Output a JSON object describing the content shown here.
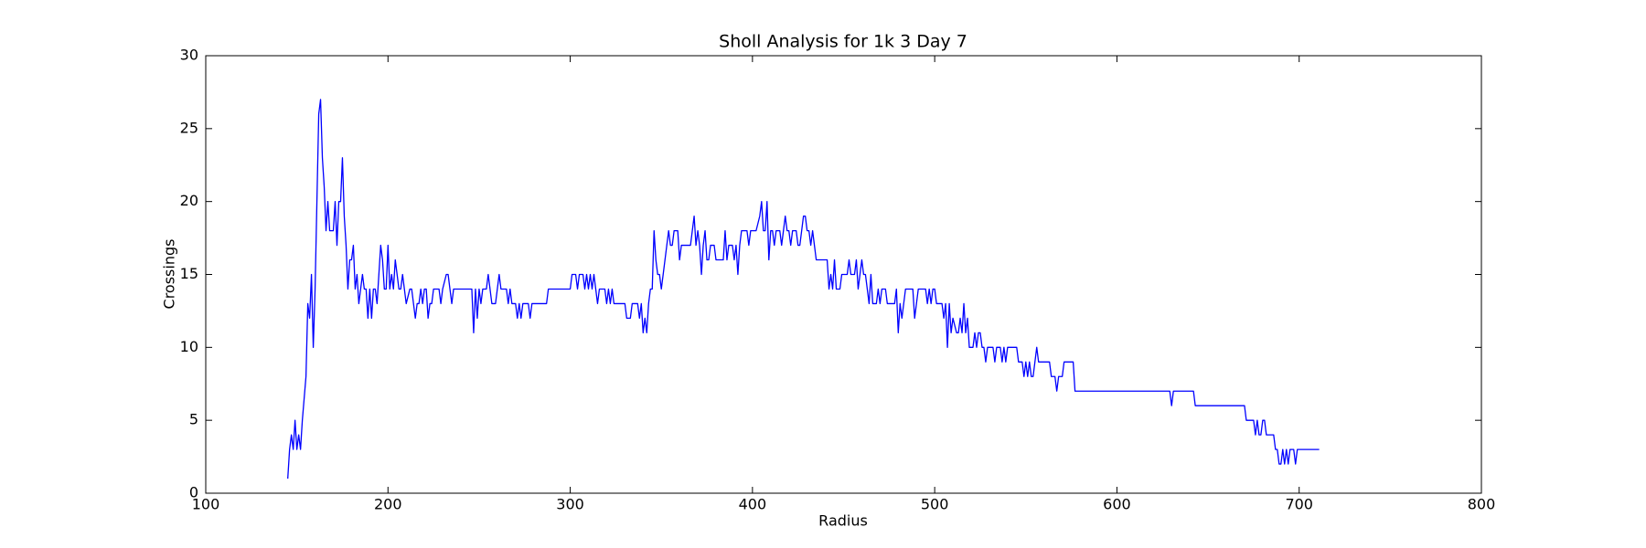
{
  "chart_data": {
    "type": "line",
    "title": "Sholl Analysis for 1k 3 Day 7",
    "x_label": "Radius",
    "y_label": "Crossings",
    "xlim": [
      100,
      800
    ],
    "xticks": [
      100,
      200,
      300,
      400,
      500,
      600,
      700,
      800
    ],
    "ylim": [
      0,
      30
    ],
    "yticks": [
      0,
      5,
      10,
      15,
      20,
      25,
      30
    ],
    "grid": false,
    "series": [
      {
        "color": "#0000ff",
        "x": [
          145,
          146,
          147,
          148,
          149,
          150,
          151,
          152,
          153,
          155,
          156,
          157,
          158,
          159,
          160,
          161,
          162,
          163,
          164,
          165,
          166,
          167,
          168,
          170,
          171,
          172,
          173,
          174,
          175,
          176,
          177,
          178,
          179,
          180,
          181,
          182,
          183,
          184,
          185,
          186,
          187,
          188,
          189,
          190,
          191,
          192,
          193,
          194,
          196,
          197,
          198,
          199,
          200,
          201,
          202,
          203,
          204,
          205,
          206,
          207,
          208,
          209,
          210,
          212,
          213,
          214,
          215,
          216,
          217,
          218,
          219,
          220,
          221,
          222,
          223,
          224,
          225,
          226,
          228,
          229,
          230,
          232,
          233,
          234,
          235,
          236,
          246,
          247,
          248,
          249,
          250,
          251,
          252,
          254,
          255,
          257,
          259,
          260,
          261,
          262,
          265,
          266,
          267,
          268,
          270,
          271,
          272,
          273,
          274,
          277,
          278,
          279,
          282,
          287,
          288,
          297,
          300,
          301,
          303,
          304,
          305,
          307,
          308,
          309,
          310,
          311,
          312,
          313,
          314,
          315,
          316,
          319,
          320,
          321,
          322,
          323,
          324,
          330,
          331,
          333,
          334,
          337,
          338,
          339,
          340,
          341,
          342,
          343,
          344,
          345,
          346,
          347,
          348,
          349,
          350,
          351,
          353,
          354,
          355,
          356,
          357,
          359,
          360,
          361,
          366,
          367,
          368,
          369,
          370,
          371,
          372,
          373,
          374,
          375,
          376,
          377,
          379,
          380,
          384,
          385,
          386,
          387,
          389,
          390,
          391,
          392,
          393,
          394,
          397,
          398,
          399,
          402,
          404,
          405,
          406,
          407,
          408,
          409,
          410,
          411,
          412,
          413,
          415,
          416,
          417,
          418,
          419,
          420,
          421,
          422,
          424,
          425,
          426,
          427,
          428,
          429,
          430,
          431,
          432,
          433,
          434,
          435,
          441,
          442,
          443,
          444,
          445,
          446,
          448,
          449,
          452,
          453,
          454,
          456,
          457,
          458,
          459,
          460,
          461,
          462,
          463,
          464,
          465,
          466,
          468,
          469,
          470,
          471,
          473,
          474,
          478,
          479,
          480,
          481,
          482,
          483,
          484,
          488,
          489,
          490,
          491,
          495,
          496,
          497,
          498,
          499,
          500,
          501,
          504,
          505,
          506,
          507,
          508,
          509,
          510,
          512,
          513,
          514,
          515,
          516,
          517,
          518,
          519,
          521,
          522,
          523,
          524,
          525,
          526,
          527,
          528,
          529,
          532,
          533,
          534,
          536,
          537,
          538,
          539,
          540,
          545,
          546,
          548,
          549,
          550,
          551,
          552,
          553,
          554,
          555,
          556,
          557,
          563,
          564,
          566,
          567,
          568,
          570,
          571,
          576,
          577,
          629,
          630,
          631,
          642,
          643,
          670,
          671,
          675,
          676,
          677,
          678,
          679,
          680,
          681,
          682,
          686,
          687,
          688,
          689,
          690,
          691,
          692,
          693,
          694,
          695,
          697,
          698,
          699,
          711
        ],
        "values": [
          1,
          3,
          4,
          3,
          5,
          3,
          4,
          3,
          5,
          8,
          13,
          12,
          15,
          10,
          14,
          20,
          26,
          27,
          23,
          21,
          18,
          20,
          18,
          18,
          20,
          17,
          20,
          20,
          23,
          19,
          17,
          14,
          16,
          16,
          17,
          14,
          15,
          13,
          14,
          15,
          14,
          14,
          12,
          14,
          12,
          14,
          14,
          13,
          17,
          16,
          14,
          14,
          17,
          14,
          15,
          14,
          16,
          15,
          14,
          14,
          15,
          14,
          13,
          14,
          14,
          13,
          12,
          13,
          13,
          14,
          13,
          14,
          14,
          12,
          13,
          13,
          14,
          14,
          14,
          13,
          14,
          15,
          15,
          14,
          13,
          14,
          14,
          11,
          14,
          12,
          14,
          13,
          14,
          14,
          15,
          13,
          13,
          14,
          15,
          14,
          14,
          13,
          14,
          13,
          13,
          12,
          13,
          12,
          13,
          13,
          12,
          13,
          13,
          13,
          14,
          14,
          14,
          15,
          15,
          14,
          15,
          15,
          14,
          15,
          14,
          15,
          14,
          15,
          14,
          13,
          14,
          14,
          13,
          14,
          13,
          14,
          13,
          13,
          12,
          12,
          13,
          13,
          12,
          13,
          11,
          12,
          11,
          13,
          14,
          14,
          18,
          16,
          15,
          15,
          14,
          15,
          17,
          18,
          17,
          17,
          18,
          18,
          16,
          17,
          17,
          18,
          19,
          17,
          18,
          17,
          15,
          17,
          18,
          16,
          16,
          17,
          17,
          16,
          16,
          18,
          16,
          17,
          17,
          16,
          17,
          15,
          17,
          18,
          18,
          17,
          18,
          18,
          19,
          20,
          18,
          18,
          20,
          16,
          18,
          18,
          17,
          18,
          18,
          17,
          18,
          19,
          18,
          18,
          17,
          18,
          18,
          17,
          17,
          18,
          19,
          19,
          18,
          18,
          17,
          18,
          17,
          16,
          16,
          14,
          15,
          14,
          16,
          14,
          14,
          15,
          15,
          16,
          15,
          15,
          16,
          14,
          15,
          16,
          15,
          15,
          14,
          13,
          15,
          13,
          13,
          14,
          13,
          14,
          14,
          13,
          13,
          14,
          11,
          13,
          12,
          13,
          14,
          14,
          12,
          13,
          14,
          14,
          13,
          14,
          13,
          14,
          14,
          13,
          13,
          12,
          13,
          10,
          13,
          11,
          12,
          11,
          11,
          12,
          11,
          13,
          11,
          12,
          10,
          10,
          11,
          10,
          11,
          11,
          10,
          10,
          9,
          10,
          10,
          9,
          10,
          10,
          9,
          10,
          9,
          10,
          10,
          9,
          9,
          8,
          9,
          8,
          9,
          8,
          8,
          9,
          10,
          9,
          9,
          8,
          8,
          7,
          8,
          8,
          9,
          9,
          7,
          7,
          6,
          7,
          7,
          6,
          6,
          5,
          5,
          4,
          5,
          4,
          4,
          5,
          5,
          4,
          4,
          3,
          3,
          2,
          2,
          3,
          2,
          3,
          2,
          3,
          3,
          2,
          3,
          3
        ]
      }
    ]
  }
}
